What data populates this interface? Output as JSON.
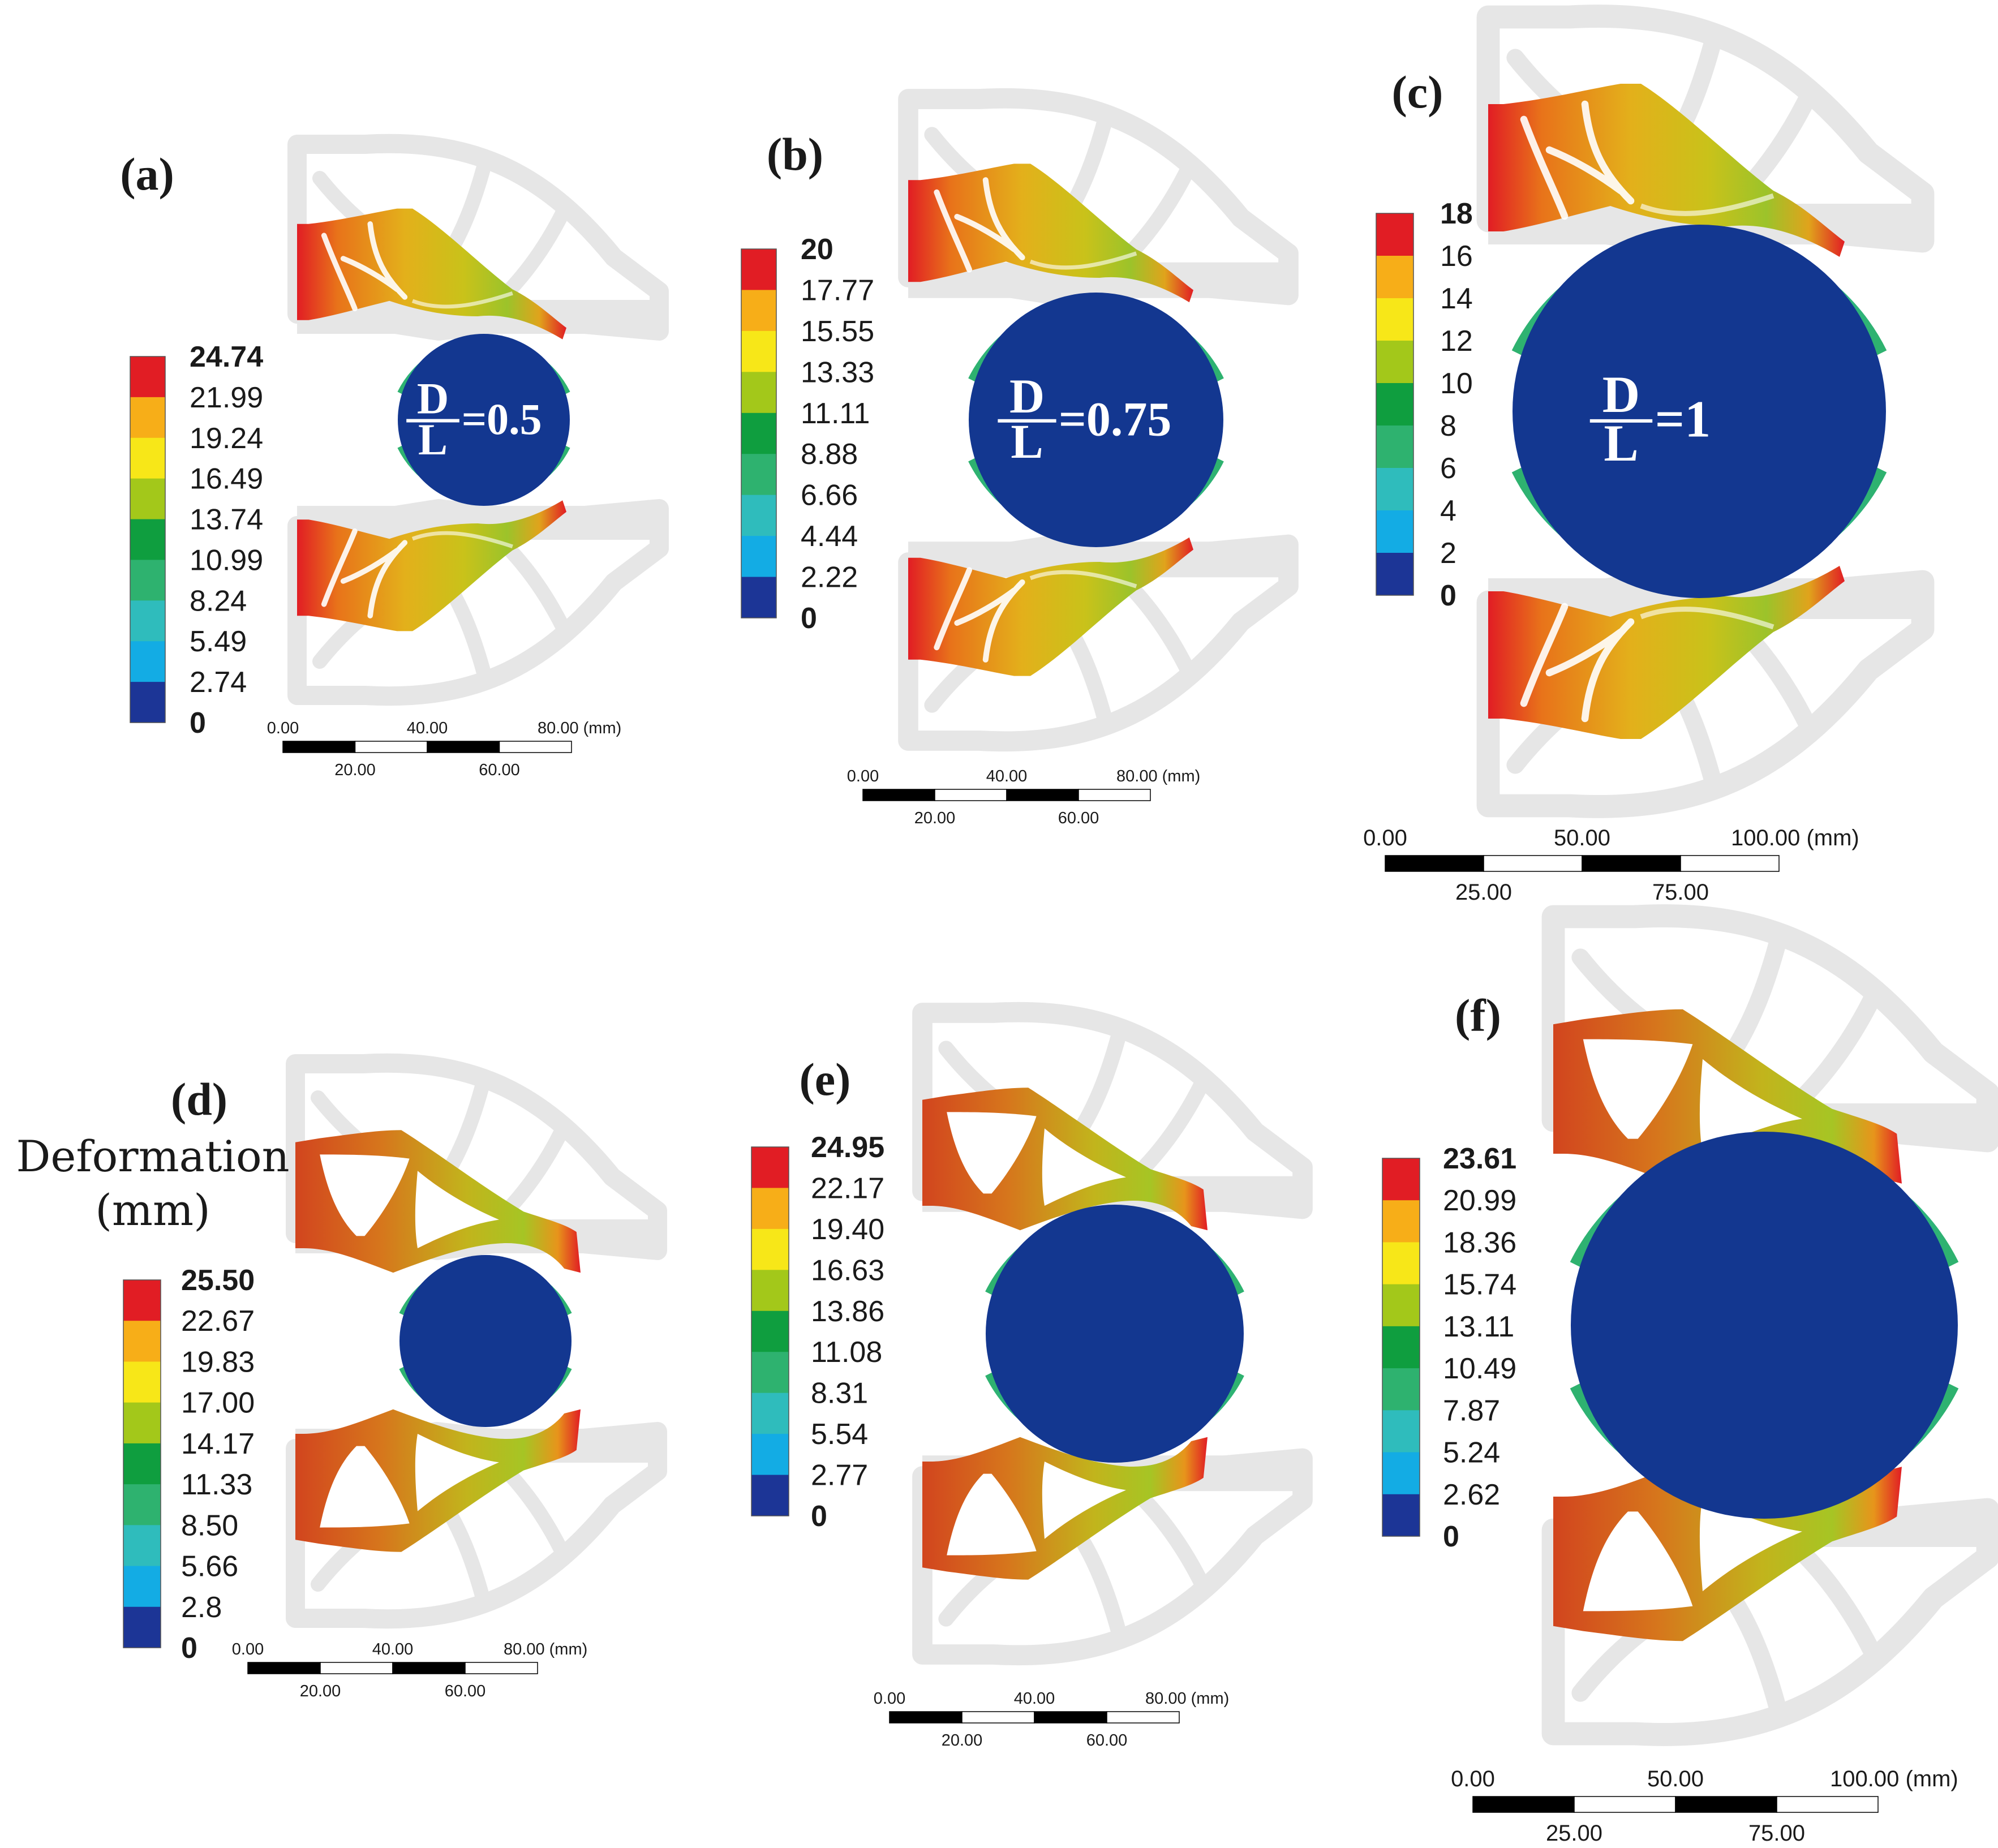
{
  "figure": {
    "legend_title_line1": "Deformation",
    "legend_title_line2": "(mm)",
    "colors": {
      "bands": [
        "#1c3596",
        "#13ace4",
        "#2fbcbc",
        "#2eb26f",
        "#0f9e3f",
        "#a3c81a",
        "#f7e718",
        "#f7ae18",
        "#e11d24"
      ],
      "ghost": "#e6e6e6",
      "cylinder": "#133790"
    }
  },
  "panels": [
    {
      "id": "a",
      "label": "(a)",
      "ratio": {
        "numerator": "D",
        "denominator": "L",
        "value": "=0.5"
      },
      "legend": [
        "24.74",
        "21.99",
        "19.24",
        "16.49",
        "13.74",
        "10.99",
        "8.24",
        "5.49",
        "2.74",
        "0"
      ],
      "scale": {
        "top": [
          "0.00",
          "40.00",
          "80.00 (mm)"
        ],
        "bottom": [
          "20.00",
          "60.00"
        ]
      }
    },
    {
      "id": "b",
      "label": "(b)",
      "ratio": {
        "numerator": "D",
        "denominator": "L",
        "value": "=0.75"
      },
      "legend": [
        "20",
        "17.77",
        "15.55",
        "13.33",
        "11.11",
        "8.88",
        "6.66",
        "4.44",
        "2.22",
        "0"
      ],
      "scale": {
        "top": [
          "0.00",
          "40.00",
          "80.00 (mm)"
        ],
        "bottom": [
          "20.00",
          "60.00"
        ]
      }
    },
    {
      "id": "c",
      "label": "(c)",
      "ratio": {
        "numerator": "D",
        "denominator": "L",
        "value": "=1"
      },
      "legend": [
        "18",
        "16",
        "14",
        "12",
        "10",
        "8",
        "6",
        "4",
        "2",
        "0"
      ],
      "scale": {
        "top": [
          "0.00",
          "50.00",
          "100.00 (mm)"
        ],
        "bottom": [
          "25.00",
          "75.00"
        ]
      }
    },
    {
      "id": "d",
      "label": "(d)",
      "legend": [
        "25.50",
        "22.67",
        "19.83",
        "17.00",
        "14.17",
        "11.33",
        "8.50",
        "5.66",
        "2.8",
        "0"
      ],
      "scale": {
        "top": [
          "0.00",
          "40.00",
          "80.00 (mm)"
        ],
        "bottom": [
          "20.00",
          "60.00"
        ]
      }
    },
    {
      "id": "e",
      "label": "(e)",
      "legend": [
        "24.95",
        "22.17",
        "19.40",
        "16.63",
        "13.86",
        "11.08",
        "8.31",
        "5.54",
        "2.77",
        "0"
      ],
      "scale": {
        "top": [
          "0.00",
          "40.00",
          "80.00 (mm)"
        ],
        "bottom": [
          "20.00",
          "60.00"
        ]
      }
    },
    {
      "id": "f",
      "label": "(f)",
      "legend": [
        "23.61",
        "20.99",
        "18.36",
        "15.74",
        "13.11",
        "10.49",
        "7.87",
        "5.24",
        "2.62",
        "0"
      ],
      "scale": {
        "top": [
          "0.00",
          "50.00",
          "100.00 (mm)"
        ],
        "bottom": [
          "25.00",
          "75.00"
        ]
      }
    }
  ]
}
